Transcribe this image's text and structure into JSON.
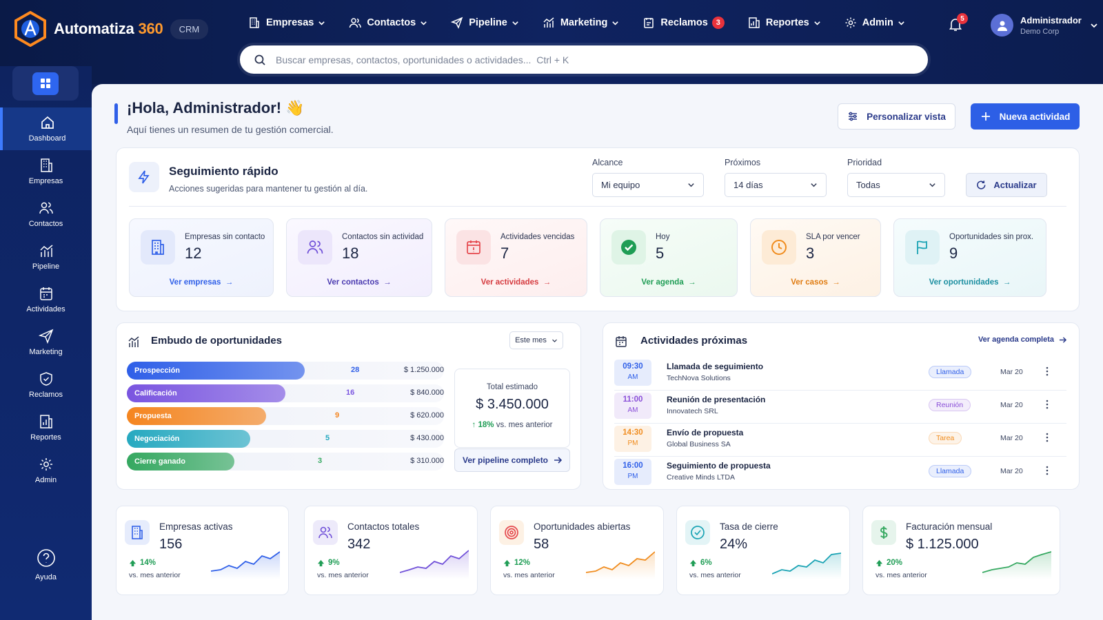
{
  "brand": {
    "name": "Automatiza",
    "number": "360",
    "badge": "CRM"
  },
  "nav": [
    {
      "label": "Empresas",
      "icon": "building-icon",
      "dropdown": true
    },
    {
      "label": "Contactos",
      "icon": "users-icon",
      "dropdown": true
    },
    {
      "label": "Pipeline",
      "icon": "send-icon",
      "dropdown": true
    },
    {
      "label": "Marketing",
      "icon": "chart-icon",
      "dropdown": true
    },
    {
      "label": "Reclamos",
      "icon": "clipboard-icon",
      "badge": "3"
    },
    {
      "label": "Reportes",
      "icon": "report-icon",
      "dropdown": true
    },
    {
      "label": "Admin",
      "icon": "gear-icon",
      "dropdown": true
    }
  ],
  "notifications": {
    "count": "5"
  },
  "user": {
    "name": "Administrador",
    "org": "Demo Corp"
  },
  "search": {
    "placeholder": "Buscar empresas, contactos, oportunidades o actividades...  Ctrl + K"
  },
  "sidebar": [
    {
      "label": "Dashboard",
      "icon": "home-icon",
      "active": true
    },
    {
      "label": "Empresas",
      "icon": "building-icon"
    },
    {
      "label": "Contactos",
      "icon": "users-icon"
    },
    {
      "label": "Pipeline",
      "icon": "chart-icon"
    },
    {
      "label": "Actividades",
      "icon": "calendar-icon"
    },
    {
      "label": "Marketing",
      "icon": "send-icon"
    },
    {
      "label": "Reclamos",
      "icon": "shield-icon"
    },
    {
      "label": "Reportes",
      "icon": "report-icon"
    },
    {
      "label": "Admin",
      "icon": "gear-icon"
    }
  ],
  "help": {
    "label": "Ayuda"
  },
  "greeting": {
    "title": "¡Hola, Administrador! 👋",
    "subtitle": "Aquí tienes un resumen de tu gestión comercial."
  },
  "actions": {
    "customize": "Personalizar vista",
    "new_activity": "Nueva actividad"
  },
  "quick": {
    "title": "Seguimiento rápido",
    "subtitle": "Acciones sugeridas para mantener tu gestión al día.",
    "filters": [
      {
        "label": "Alcance",
        "value": "Mi equipo"
      },
      {
        "label": "Próximos",
        "value": "14 días"
      },
      {
        "label": "Prioridad",
        "value": "Todas"
      }
    ],
    "refresh": "Actualizar",
    "kpis": [
      {
        "label": "Empresas sin contacto",
        "value": "12",
        "link": "Ver empresas",
        "color": "#2f5fe8",
        "icon": "building-icon"
      },
      {
        "label": "Contactos sin actividad",
        "value": "18",
        "link": "Ver contactos",
        "color": "#6f4fd8",
        "icon": "users-icon"
      },
      {
        "label": "Actividades vencidas",
        "value": "7",
        "link": "Ver actividades",
        "color": "#e5484d",
        "icon": "calendar-alert-icon"
      },
      {
        "label": "Hoy",
        "value": "5",
        "link": "Ver agenda",
        "color": "#1f9d55",
        "icon": "check-circle-icon"
      },
      {
        "label": "SLA por vencer",
        "value": "3",
        "link": "Ver casos",
        "color": "#f08c1e",
        "icon": "clock-icon"
      },
      {
        "label": "Oportunidades sin prox.",
        "value": "9",
        "link": "Ver oportunidades",
        "color": "#1aa3b4",
        "icon": "flag-icon"
      }
    ]
  },
  "funnel": {
    "title": "Embudo de oportunidades",
    "period": "Este mes",
    "stages": [
      {
        "label": "Prospección",
        "count": "28",
        "amount": "$ 1.250.000",
        "fill": 0.56,
        "color": "#2f5fe8"
      },
      {
        "label": "Calificación",
        "count": "16",
        "amount": "$ 840.000",
        "fill": 0.5,
        "color": "#7a55e0"
      },
      {
        "label": "Propuesta",
        "count": "9",
        "amount": "$ 620.000",
        "fill": 0.44,
        "color": "#f5851f"
      },
      {
        "label": "Negociación",
        "count": "5",
        "amount": "$ 430.000",
        "fill": 0.39,
        "color": "#26a9c0"
      },
      {
        "label": "Cierre ganado",
        "count": "3",
        "amount": "$ 310.000",
        "fill": 0.34,
        "color": "#35a860"
      }
    ],
    "total_label": "Total estimado",
    "total_value": "$ 3.450.000",
    "total_change": "18%",
    "total_vs": "vs. mes anterior",
    "pipeline_link": "Ver pipeline completo"
  },
  "activities": {
    "title": "Actividades próximas",
    "link": "Ver agenda completa",
    "items": [
      {
        "time": "09:30",
        "ampm": "AM",
        "title": "Llamada de seguimiento",
        "company": "TechNova Solutions",
        "tag": "Llamada",
        "date": "Mar 20",
        "color": "#2f5fe8"
      },
      {
        "time": "11:00",
        "ampm": "AM",
        "title": "Reunión de presentación",
        "company": "Innovatech SRL",
        "tag": "Reunión",
        "date": "Mar 20",
        "color": "#8a4fd8"
      },
      {
        "time": "14:30",
        "ampm": "PM",
        "title": "Envío de propuesta",
        "company": "Global Business SA",
        "tag": "Tarea",
        "date": "Mar 20",
        "color": "#f08c1e"
      },
      {
        "time": "16:00",
        "ampm": "PM",
        "title": "Seguimiento de propuesta",
        "company": "Creative Minds LTDA",
        "tag": "Llamada",
        "date": "Mar 20",
        "color": "#2f5fe8"
      }
    ]
  },
  "stats": [
    {
      "label": "Empresas activas",
      "value": "156",
      "change": "14%",
      "vs": "vs. mes anterior",
      "color": "#2f5fe8",
      "icon": "building-icon"
    },
    {
      "label": "Contactos totales",
      "value": "342",
      "change": "9%",
      "vs": "vs. mes anterior",
      "color": "#6f4fd8",
      "icon": "users-icon"
    },
    {
      "label": "Oportunidades abiertas",
      "value": "58",
      "change": "12%",
      "vs": "vs. mes anterior",
      "color": "#f08c1e",
      "icon": "target-icon"
    },
    {
      "label": "Tasa de cierre",
      "value": "24%",
      "change": "6%",
      "vs": "vs. mes anterior",
      "color": "#1aa3b4",
      "icon": "check-circle-icon"
    },
    {
      "label": "Facturación mensual",
      "value": "$ 1.125.000",
      "change": "20%",
      "vs": "vs. mes anterior",
      "color": "#35a860",
      "icon": "dollar-icon"
    }
  ]
}
